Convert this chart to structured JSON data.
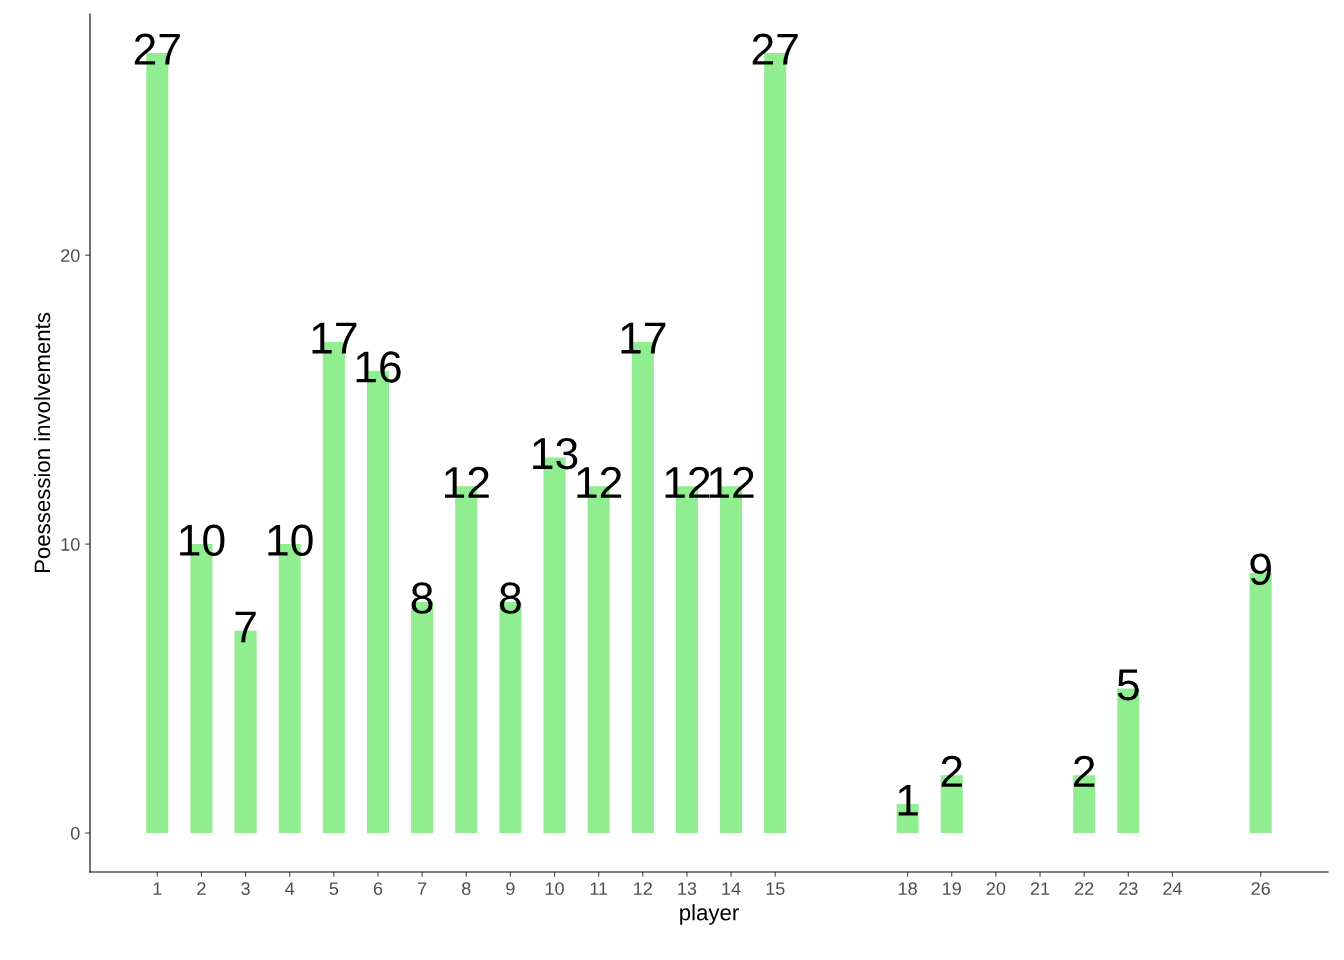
{
  "chart_data": {
    "type": "bar",
    "xlabel": "player",
    "ylabel": "Poessession involvements",
    "x": [
      1,
      2,
      3,
      4,
      5,
      6,
      7,
      8,
      9,
      10,
      11,
      12,
      13,
      14,
      15,
      18,
      19,
      22,
      23,
      26
    ],
    "values": [
      27,
      10,
      7,
      10,
      17,
      16,
      8,
      12,
      8,
      13,
      12,
      17,
      12,
      12,
      27,
      1,
      2,
      2,
      5,
      9
    ],
    "color": "#90ee90",
    "xlim": [
      -0.525,
      27.525
    ],
    "xticks": [
      1,
      2,
      3,
      4,
      5,
      6,
      7,
      8,
      9,
      10,
      11,
      12,
      13,
      14,
      15,
      18,
      19,
      20,
      21,
      22,
      23,
      24,
      26
    ],
    "ylim": [
      -1.35,
      28.35
    ],
    "yticks": [
      0,
      10,
      20
    ],
    "data_labels": true,
    "grid": false,
    "legend": false
  }
}
